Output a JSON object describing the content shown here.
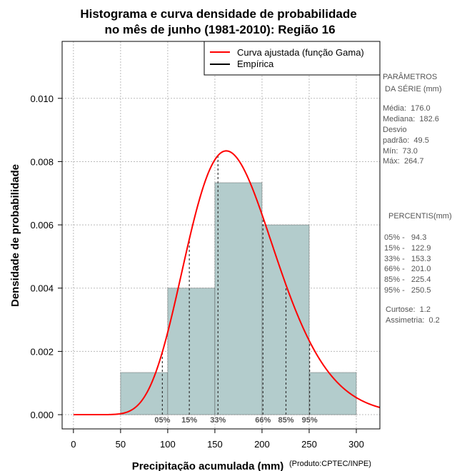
{
  "chart_data": {
    "type": "histogram",
    "title_lines": [
      "Histograma e curva densidade de probabilidade",
      "no mês de junho (1981-2010): Região 16"
    ],
    "xlabel": "Precipitação acumulada (mm)",
    "ylabel": "Densidade de probabilidade",
    "credit": "(Produto:CPTEC/INPE)",
    "xlim": [
      -12,
      325
    ],
    "ylim": [
      -0.00045,
      0.0118
    ],
    "x_ticks": [
      0,
      50,
      100,
      150,
      200,
      250,
      300
    ],
    "y_ticks": [
      0.0,
      0.002,
      0.004,
      0.006,
      0.008,
      0.01
    ],
    "y_tick_labels": [
      "0.000",
      "0.002",
      "0.004",
      "0.006",
      "0.008",
      "0.010"
    ],
    "bins": [
      {
        "from": 50,
        "to": 100,
        "density": 0.001333
      },
      {
        "from": 100,
        "to": 150,
        "density": 0.004
      },
      {
        "from": 150,
        "to": 200,
        "density": 0.007333
      },
      {
        "from": 200,
        "to": 250,
        "density": 0.006
      },
      {
        "from": 250,
        "to": 300,
        "density": 0.001333
      }
    ],
    "gamma_fit": {
      "mean": 176.0,
      "sd": 49.5
    },
    "percentiles": [
      {
        "label": "05%",
        "value": 94.3
      },
      {
        "label": "15%",
        "value": 122.9
      },
      {
        "label": "33%",
        "value": 153.3
      },
      {
        "label": "66%",
        "value": 201.0
      },
      {
        "label": "85%",
        "value": 225.4
      },
      {
        "label": "95%",
        "value": 250.5
      }
    ],
    "legend": [
      {
        "label": "Curva ajustada (função Gama)",
        "color": "#ff0000"
      },
      {
        "label": "Empírica",
        "color": "#000000"
      }
    ],
    "grid": true,
    "colors": {
      "bar_fill": "#b3cccc",
      "curve": "#ff0000",
      "grid": "#bbbbbb"
    }
  },
  "side_panel": {
    "params_title": [
      "PARÂMETROS",
      " DA SÉRIE (mm)"
    ],
    "params": [
      "Média:  176.0",
      "Mediana:  182.6",
      "Desvio",
      "padrão:  49.5",
      "Mín:  73.0",
      "Máx:  264.7"
    ],
    "percentis_title": "PERCENTIS(mm)",
    "percentis": [
      "05% -   94.3",
      "15% -   122.9",
      "33% -   153.3",
      "66% -   201.0",
      "85% -   225.4",
      "95% -   250.5"
    ],
    "shape": [
      "Curtose:  1.2",
      "Assimetria:  0.2"
    ]
  }
}
